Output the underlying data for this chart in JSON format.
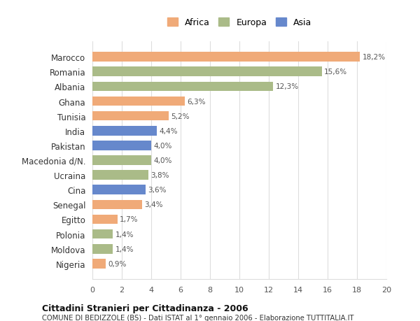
{
  "countries": [
    "Marocco",
    "Romania",
    "Albania",
    "Ghana",
    "Tunisia",
    "India",
    "Pakistan",
    "Macedonia d/N.",
    "Ucraina",
    "Cina",
    "Senegal",
    "Egitto",
    "Polonia",
    "Moldova",
    "Nigeria"
  ],
  "values": [
    18.2,
    15.6,
    12.3,
    6.3,
    5.2,
    4.4,
    4.0,
    4.0,
    3.8,
    3.6,
    3.4,
    1.7,
    1.4,
    1.4,
    0.9
  ],
  "continents": [
    "Africa",
    "Europa",
    "Europa",
    "Africa",
    "Africa",
    "Asia",
    "Asia",
    "Europa",
    "Europa",
    "Asia",
    "Africa",
    "Africa",
    "Europa",
    "Europa",
    "Africa"
  ],
  "colors": {
    "Africa": "#F0AA78",
    "Europa": "#AABB88",
    "Asia": "#6688CC"
  },
  "legend_order": [
    "Africa",
    "Europa",
    "Asia"
  ],
  "xlim": [
    0,
    20
  ],
  "xticks": [
    0,
    2,
    4,
    6,
    8,
    10,
    12,
    14,
    16,
    18,
    20
  ],
  "title": "Cittadini Stranieri per Cittadinanza - 2006",
  "subtitle": "COMUNE DI BEDIZZOLE (BS) - Dati ISTAT al 1° gennaio 2006 - Elaborazione TUTTITALIA.IT",
  "bg_color": "#FFFFFF",
  "grid_color": "#DDDDDD",
  "bar_height": 0.65
}
